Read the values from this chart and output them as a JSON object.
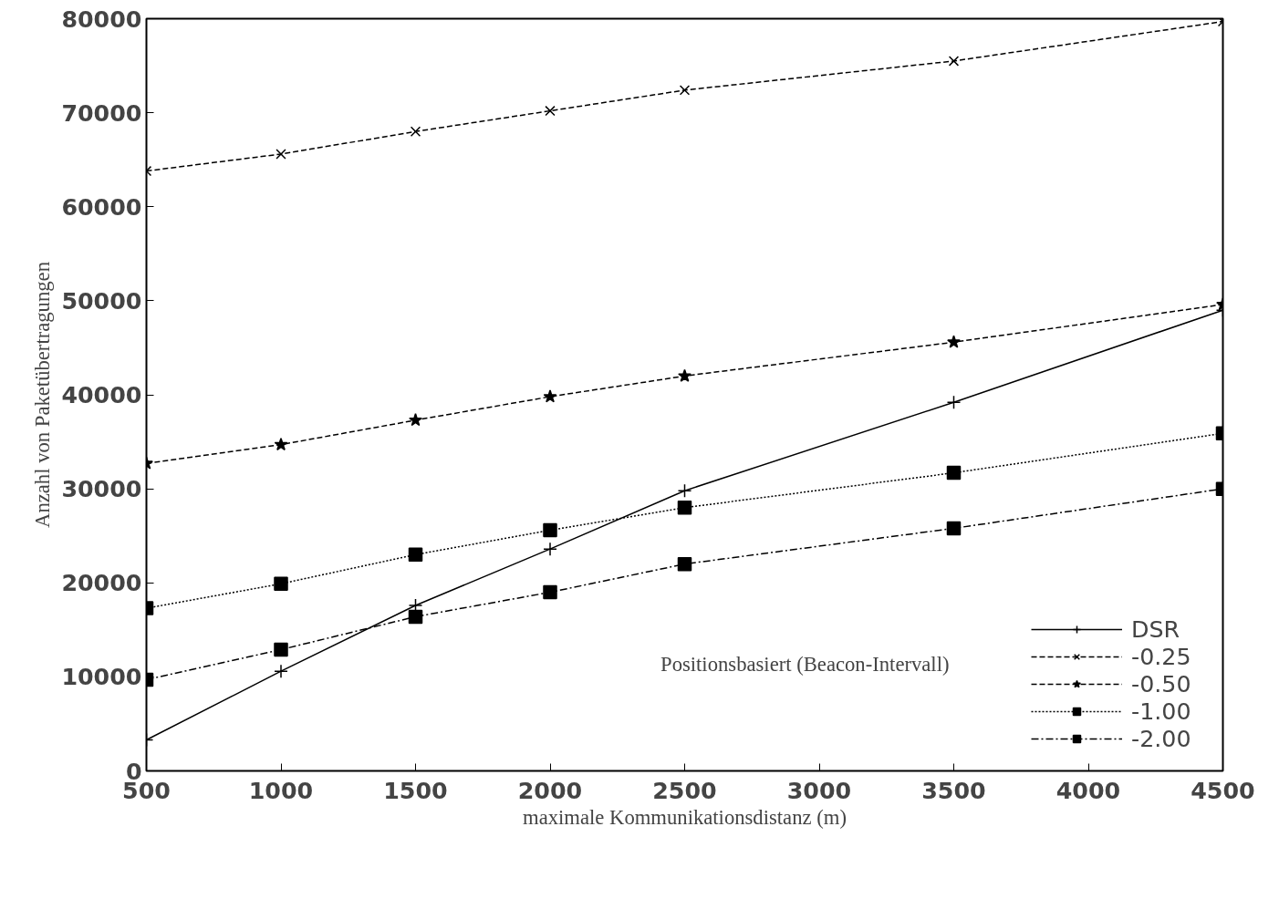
{
  "chart_data": {
    "type": "line",
    "xlabel": "maximale Kommunikationsdistanz (m)",
    "ylabel": "Anzahl von Paketübertragungen",
    "legend_title": "Positionsbasiert (Beacon-Intervall)",
    "x": [
      500,
      1000,
      1500,
      2000,
      2500,
      3500,
      4500
    ],
    "series": [
      {
        "name": "DSR",
        "color": "#000000",
        "line_style": "solid",
        "marker": "cross",
        "values": [
          3300,
          10600,
          17600,
          23600,
          29800,
          39200,
          49000
        ]
      },
      {
        "name": "-0.25",
        "color": "#000000",
        "line_style": "dashed",
        "marker": "cross",
        "values": [
          63800,
          65600,
          68000,
          70200,
          72400,
          75500,
          79700
        ]
      },
      {
        "name": "-0.50",
        "color": "#000000",
        "line_style": "dashed",
        "marker": "star",
        "values": [
          32700,
          34700,
          37300,
          39800,
          42000,
          45600,
          49600
        ]
      },
      {
        "name": "-1.00",
        "color": "#000000",
        "line_style": "dotted",
        "marker": "square",
        "values": [
          17300,
          19900,
          23000,
          25600,
          28000,
          31700,
          35900
        ]
      },
      {
        "name": "-2.00",
        "color": "#000000",
        "line_style": "dashdot",
        "marker": "square",
        "values": [
          9700,
          12900,
          16400,
          19000,
          22000,
          25800,
          30000
        ]
      }
    ],
    "xlim": [
      500,
      4500
    ],
    "ylim": [
      0,
      80000
    ],
    "xticks": [
      500,
      1000,
      1500,
      2000,
      2500,
      3000,
      3500,
      4000,
      4500
    ],
    "yticks": [
      0,
      10000,
      20000,
      30000,
      40000,
      50000,
      60000,
      70000,
      80000
    ],
    "grid": false,
    "legend": "bottom right"
  }
}
